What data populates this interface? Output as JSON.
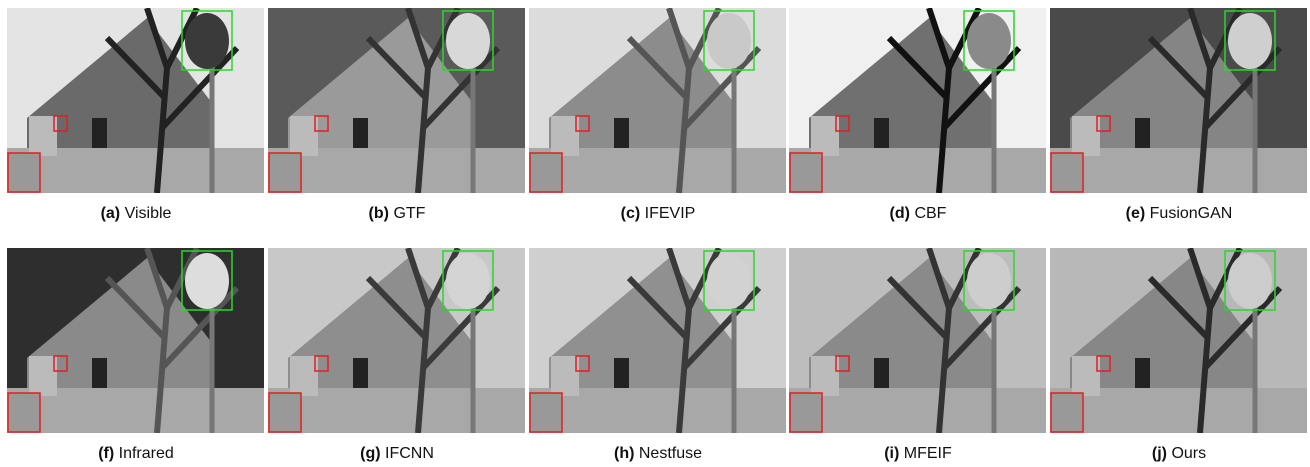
{
  "figure": {
    "panels": [
      {
        "label": "(a)",
        "name": "Visible"
      },
      {
        "label": "(b)",
        "name": "GTF"
      },
      {
        "label": "(c)",
        "name": "IFEVIP"
      },
      {
        "label": "(d)",
        "name": "CBF"
      },
      {
        "label": "(e)",
        "name": "FusionGAN"
      },
      {
        "label": "(f)",
        "name": "Infrared"
      },
      {
        "label": "(g)",
        "name": "IFCNN"
      },
      {
        "label": "(h)",
        "name": "Nestfuse"
      },
      {
        "label": "(i)",
        "name": "MFEIF"
      },
      {
        "label": "(j)",
        "name": "Ours"
      }
    ]
  }
}
